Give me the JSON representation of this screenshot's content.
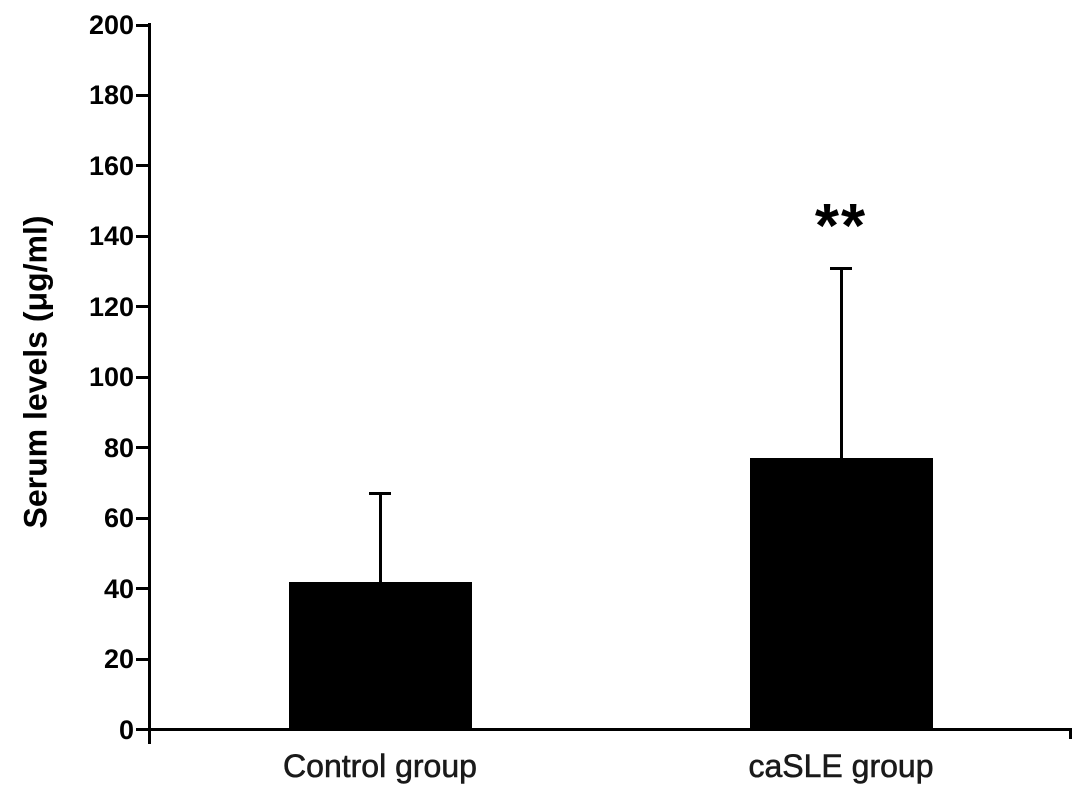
{
  "figure": {
    "background_color": "#ffffff"
  },
  "chart_data": {
    "type": "bar",
    "title": "",
    "xlabel": "",
    "ylabel": "Serum levels (μg/ml)",
    "categories": [
      "Control group",
      "caSLE group"
    ],
    "values": [
      42,
      77
    ],
    "error_upper": [
      25,
      54
    ],
    "error_bar_tops": [
      67,
      131
    ],
    "significance_labels": [
      "",
      "**"
    ],
    "ylim": [
      0,
      200
    ],
    "ytick_step": 20,
    "yticks": [
      0,
      20,
      40,
      60,
      80,
      100,
      120,
      140,
      160,
      180,
      200
    ],
    "bar_color": "#000000",
    "axis_color": "#000000",
    "text_color": "#000000",
    "grid": false,
    "legend_position": "none",
    "error_bar_style": "upper-only-with-cap"
  }
}
